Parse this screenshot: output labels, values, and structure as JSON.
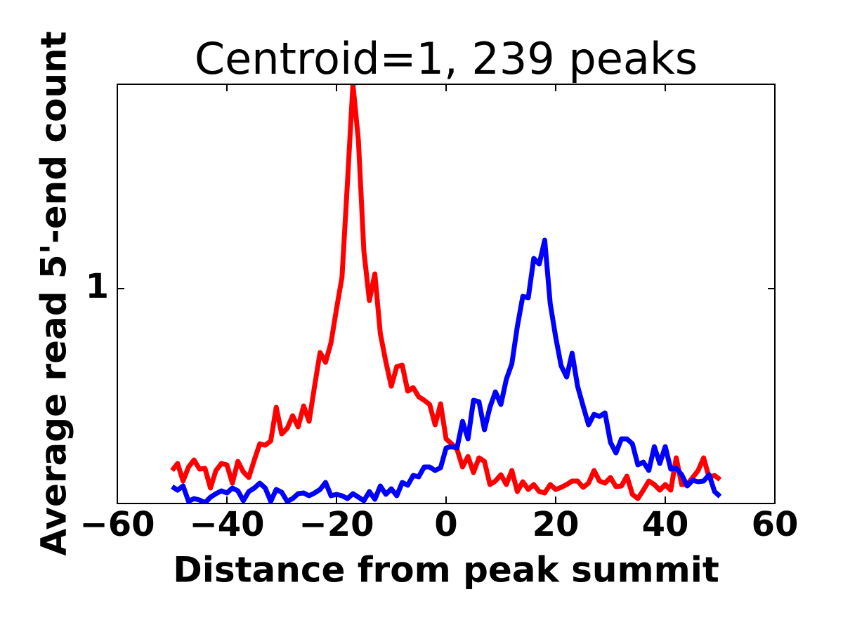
{
  "chart_data": {
    "type": "line",
    "title": "Centroid=1, 239 peaks",
    "xlabel": "Distance from peak summit",
    "ylabel": "Average read 5'-end count",
    "x": [
      -50,
      -49,
      -48,
      -47,
      -46,
      -45,
      -44,
      -43,
      -42,
      -41,
      -40,
      -39,
      -38,
      -37,
      -36,
      -35,
      -34,
      -33,
      -32,
      -31,
      -30,
      -29,
      -28,
      -27,
      -26,
      -25,
      -24,
      -23,
      -22,
      -21,
      -20,
      -19,
      -18,
      -17,
      -16,
      -15,
      -14,
      -13,
      -12,
      -11,
      -10,
      -9,
      -8,
      -7,
      -6,
      -5,
      -4,
      -3,
      -2,
      -1,
      0,
      1,
      2,
      3,
      4,
      5,
      6,
      7,
      8,
      9,
      10,
      11,
      12,
      13,
      14,
      15,
      16,
      17,
      18,
      19,
      20,
      21,
      22,
      23,
      24,
      25,
      26,
      27,
      28,
      29,
      30,
      31,
      32,
      33,
      34,
      35,
      36,
      37,
      38,
      39,
      40,
      41,
      42,
      43,
      44,
      45,
      46,
      47,
      48,
      49,
      50
    ],
    "series": [
      {
        "color": "#ff0000",
        "values": [
          0.482,
          0.502,
          0.452,
          0.492,
          0.512,
          0.486,
          0.488,
          0.432,
          0.482,
          0.502,
          0.498,
          0.446,
          0.508,
          0.478,
          0.462,
          0.512,
          0.558,
          0.554,
          0.566,
          0.662,
          0.586,
          0.602,
          0.638,
          0.606,
          0.666,
          0.622,
          0.722,
          0.818,
          0.79,
          0.846,
          0.942,
          1.032,
          1.302,
          1.582,
          1.422,
          1.106,
          0.966,
          1.042,
          0.872,
          0.792,
          0.722,
          0.778,
          0.782,
          0.708,
          0.718,
          0.692,
          0.682,
          0.67,
          0.612,
          0.672,
          0.572,
          0.558,
          0.542,
          0.492,
          0.522,
          0.476,
          0.518,
          0.508,
          0.442,
          0.452,
          0.47,
          0.442,
          0.482,
          0.422,
          0.45,
          0.428,
          0.442,
          0.422,
          0.418,
          0.442,
          0.428,
          0.434,
          0.442,
          0.452,
          0.452,
          0.434,
          0.446,
          0.482,
          0.452,
          0.446,
          0.462,
          0.436,
          0.438,
          0.466,
          0.414,
          0.402,
          0.426,
          0.452,
          0.442,
          0.426,
          0.442,
          0.426,
          0.518,
          0.442,
          0.442,
          0.462,
          0.482,
          0.518,
          0.462,
          0.468,
          0.456
        ]
      },
      {
        "color": "#0000ff",
        "values": [
          0.436,
          0.426,
          0.438,
          0.394,
          0.402,
          0.398,
          0.39,
          0.406,
          0.416,
          0.424,
          0.418,
          0.432,
          0.424,
          0.396,
          0.422,
          0.432,
          0.446,
          0.432,
          0.394,
          0.428,
          0.42,
          0.394,
          0.402,
          0.416,
          0.418,
          0.41,
          0.418,
          0.428,
          0.448,
          0.41,
          0.414,
          0.41,
          0.402,
          0.416,
          0.406,
          0.396,
          0.422,
          0.4,
          0.438,
          0.414,
          0.43,
          0.41,
          0.448,
          0.44,
          0.468,
          0.464,
          0.492,
          0.492,
          0.482,
          0.49,
          0.546,
          0.55,
          0.546,
          0.622,
          0.572,
          0.682,
          0.678,
          0.598,
          0.662,
          0.706,
          0.67,
          0.742,
          0.786,
          0.892,
          0.978,
          0.974,
          1.086,
          1.07,
          1.138,
          0.958,
          0.862,
          0.78,
          0.748,
          0.816,
          0.722,
          0.666,
          0.612,
          0.642,
          0.636,
          0.646,
          0.562,
          0.532,
          0.572,
          0.572,
          0.558,
          0.498,
          0.506,
          0.482,
          0.55,
          0.502,
          0.55,
          0.486,
          0.488,
          0.47,
          0.438,
          0.454,
          0.45,
          0.452,
          0.47,
          0.422,
          0.408
        ]
      }
    ],
    "xlim": [
      -60,
      60
    ],
    "xticks": [
      {
        "value": -60,
        "label": "−60"
      },
      {
        "value": -40,
        "label": "−40"
      },
      {
        "value": -20,
        "label": "−20"
      },
      0,
      20,
      40,
      60
    ],
    "ylim": [
      0.388,
      1.582
    ],
    "yticks": [
      1
    ]
  }
}
